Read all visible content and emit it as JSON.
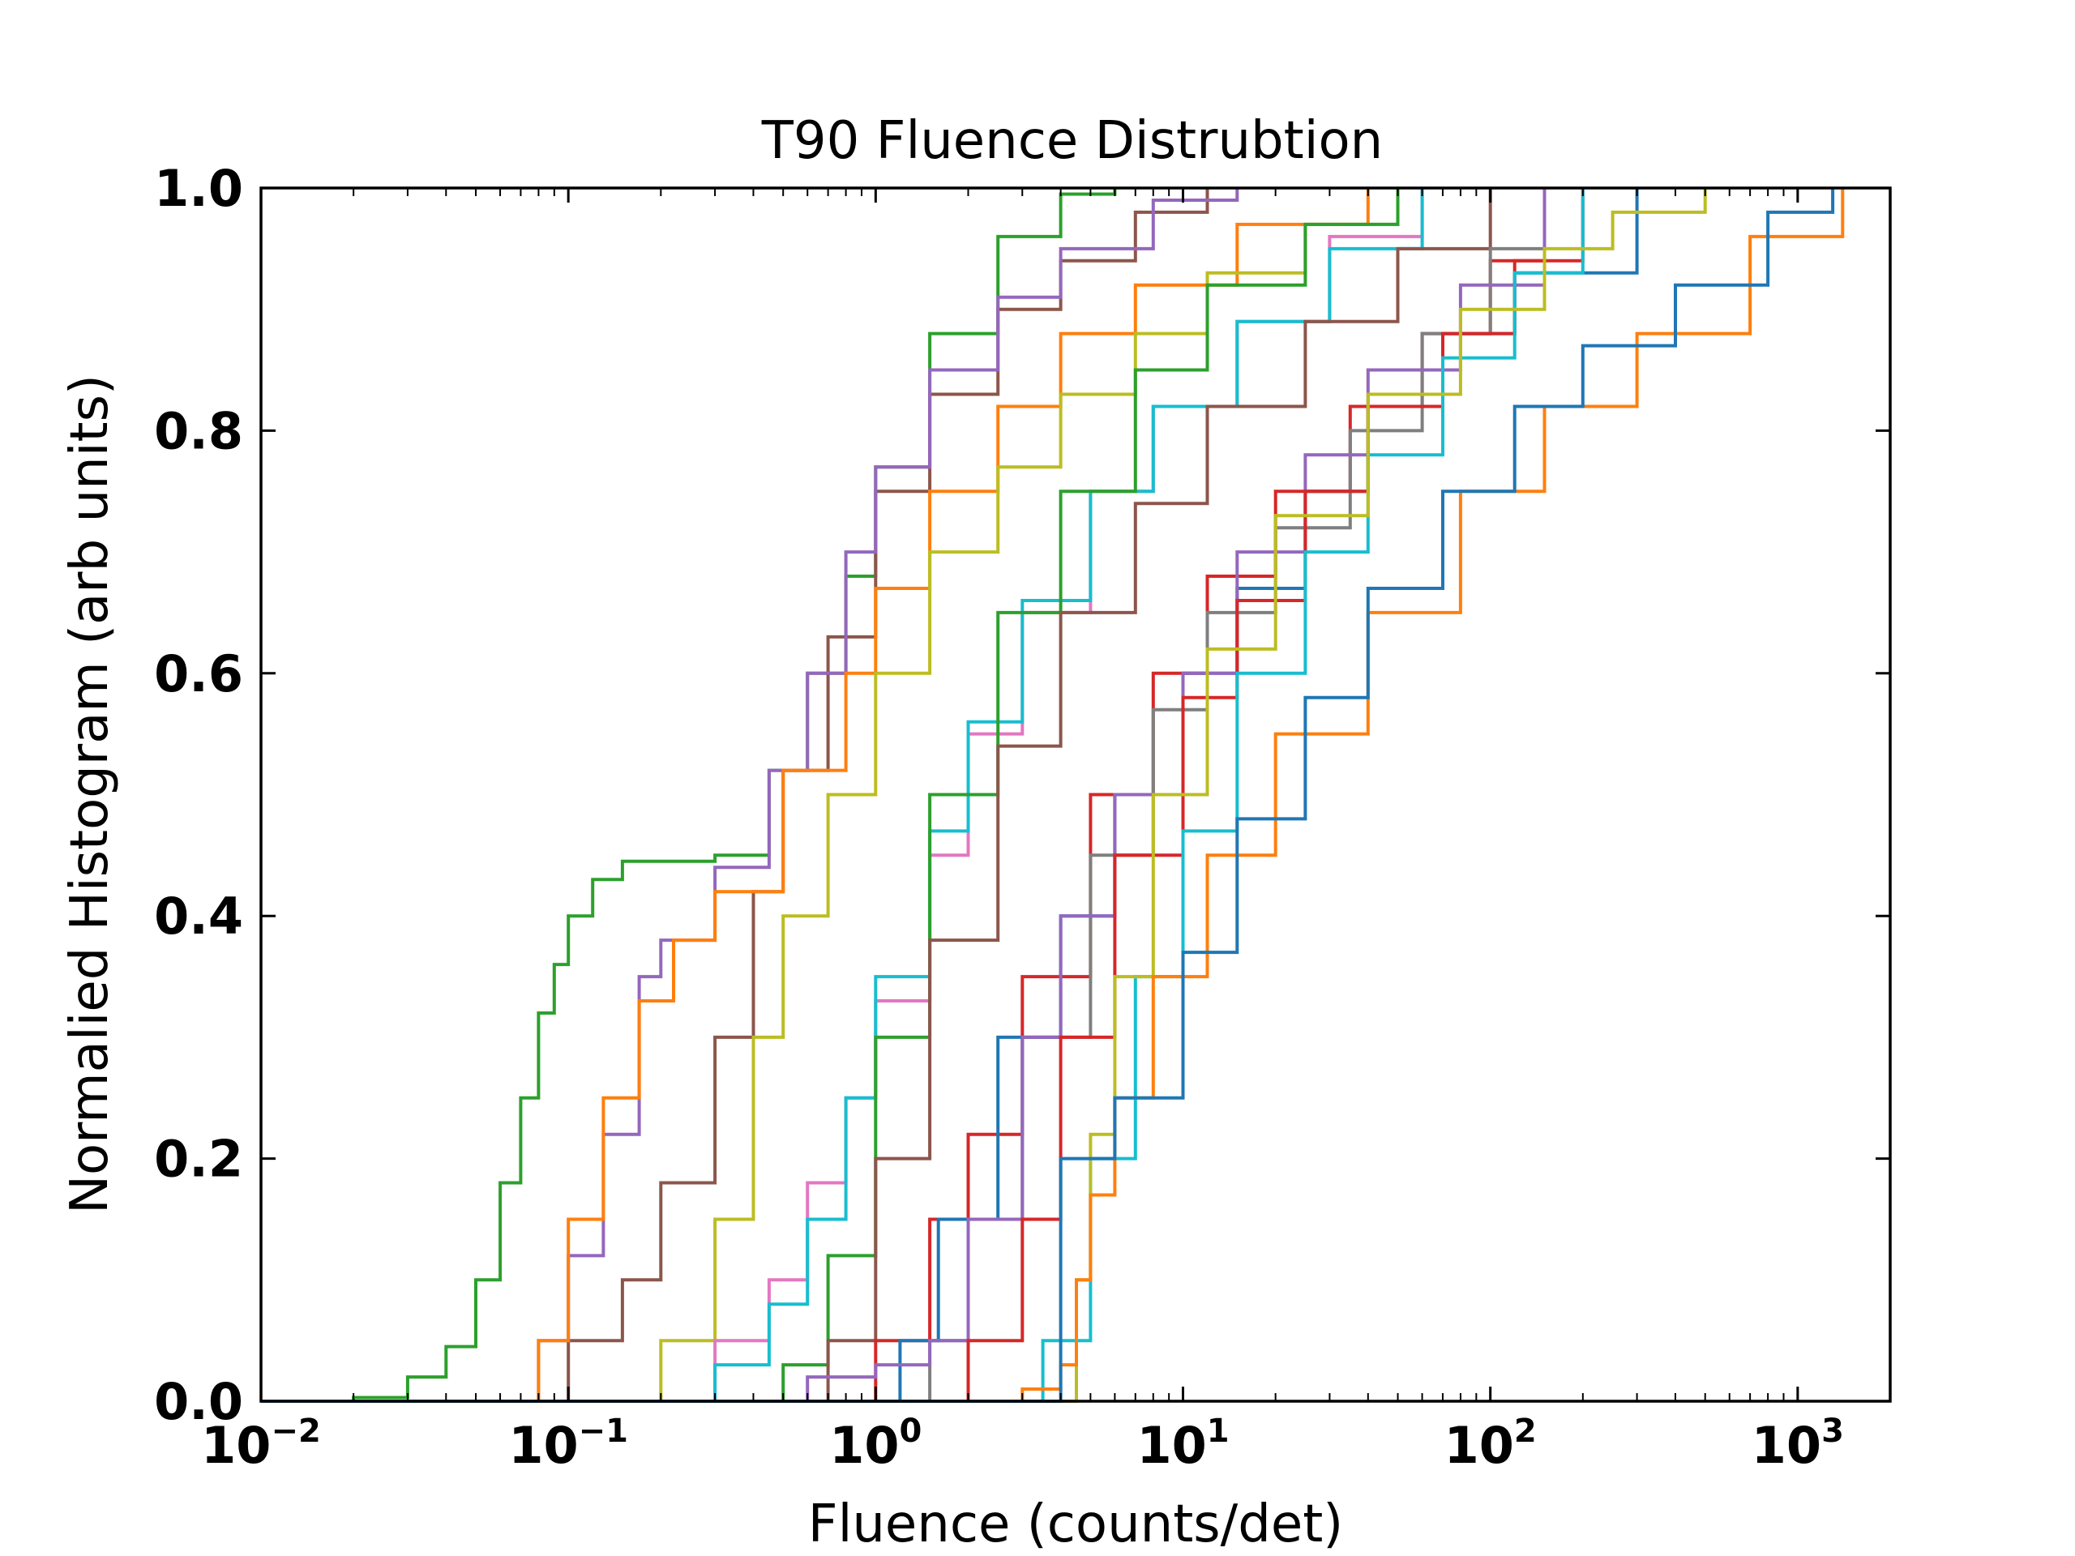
{
  "chart_data": {
    "type": "line",
    "drawstyle": "steps",
    "title": "T90 Fluence Distrubtion",
    "xlabel": "Fluence (counts/det)",
    "ylabel": "Normalied Histogram (arb units)",
    "xscale": "log",
    "xlim": [
      0.01,
      2000
    ],
    "ylim": [
      0,
      1
    ],
    "grid": false,
    "legend": "none",
    "yticks": [
      {
        "value": 0.0,
        "label": "0.0"
      },
      {
        "value": 0.2,
        "label": "0.2"
      },
      {
        "value": 0.4,
        "label": "0.4"
      },
      {
        "value": 0.6,
        "label": "0.6"
      },
      {
        "value": 0.8,
        "label": "0.8"
      },
      {
        "value": 1.0,
        "label": "1.0"
      }
    ],
    "xticks": [
      {
        "value": 0.01,
        "base": "10",
        "exp": "−2"
      },
      {
        "value": 0.1,
        "base": "10",
        "exp": "−1"
      },
      {
        "value": 1,
        "base": "10",
        "exp": "0"
      },
      {
        "value": 10,
        "base": "10",
        "exp": "1"
      },
      {
        "value": 100,
        "base": "10",
        "exp": "2"
      },
      {
        "value": 1000,
        "base": "10",
        "exp": "3"
      }
    ],
    "series": [
      {
        "color": "#2ca02c",
        "x": [
          0.01,
          0.02,
          0.03,
          0.04,
          0.05,
          0.06,
          0.07,
          0.08,
          0.09,
          0.1,
          0.12,
          0.15,
          0.2,
          0.3,
          0.45,
          0.6,
          0.8,
          1.0,
          1.5,
          2.5,
          4.0,
          6.0
        ],
        "y": [
          0,
          0.003,
          0.02,
          0.045,
          0.1,
          0.18,
          0.25,
          0.32,
          0.36,
          0.4,
          0.43,
          0.445,
          0.445,
          0.45,
          0.52,
          0.6,
          0.68,
          0.77,
          0.88,
          0.96,
          0.995,
          1.0
        ]
      },
      {
        "color": "#8c564b",
        "x": [
          0.05,
          0.1,
          0.15,
          0.2,
          0.3,
          0.4,
          0.5,
          0.7,
          1.0,
          1.5,
          2.5,
          4.0,
          7.0,
          12
        ],
        "y": [
          0,
          0.05,
          0.1,
          0.18,
          0.3,
          0.42,
          0.52,
          0.63,
          0.75,
          0.83,
          0.9,
          0.94,
          0.98,
          1.0
        ]
      },
      {
        "color": "#9467bd",
        "x": [
          0.05,
          0.08,
          0.1,
          0.13,
          0.17,
          0.2,
          0.3,
          0.45,
          0.6,
          0.8,
          1.0,
          1.5,
          2.5,
          4.0,
          8.0,
          15
        ],
        "y": [
          0,
          0.05,
          0.12,
          0.22,
          0.35,
          0.38,
          0.44,
          0.52,
          0.6,
          0.7,
          0.77,
          0.85,
          0.91,
          0.95,
          0.99,
          1.0
        ]
      },
      {
        "color": "#ff7f0e",
        "x": [
          0.06,
          0.08,
          0.1,
          0.13,
          0.17,
          0.22,
          0.3,
          0.5,
          0.8,
          1.0,
          1.5,
          2.5,
          4.0,
          7.0,
          15,
          40
        ],
        "y": [
          0,
          0.05,
          0.15,
          0.25,
          0.33,
          0.38,
          0.42,
          0.52,
          0.6,
          0.67,
          0.75,
          0.82,
          0.88,
          0.92,
          0.97,
          1.0
        ]
      },
      {
        "color": "#bcbd22",
        "x": [
          0.15,
          0.2,
          0.3,
          0.4,
          0.5,
          0.7,
          1.0,
          1.5,
          2.5,
          4.0,
          7.0,
          12,
          25,
          50
        ],
        "y": [
          0,
          0.05,
          0.15,
          0.3,
          0.4,
          0.5,
          0.6,
          0.7,
          0.77,
          0.83,
          0.88,
          0.93,
          0.97,
          1.0
        ]
      },
      {
        "color": "#e377c2",
        "x": [
          0.2,
          0.3,
          0.45,
          0.6,
          0.8,
          1.0,
          1.5,
          2.0,
          3.0,
          5.0,
          8.0,
          15,
          30,
          60
        ],
        "y": [
          0,
          0.05,
          0.1,
          0.18,
          0.25,
          0.33,
          0.45,
          0.55,
          0.65,
          0.75,
          0.82,
          0.89,
          0.96,
          1.0
        ]
      },
      {
        "color": "#17becf",
        "x": [
          0.2,
          0.3,
          0.45,
          0.6,
          0.8,
          1.0,
          1.5,
          2.0,
          3.0,
          5.0,
          8.0,
          15,
          30,
          60
        ],
        "y": [
          0,
          0.03,
          0.08,
          0.15,
          0.25,
          0.35,
          0.47,
          0.56,
          0.66,
          0.75,
          0.82,
          0.89,
          0.95,
          1.0
        ]
      },
      {
        "color": "#2ca02c",
        "x": [
          0.3,
          0.5,
          0.7,
          1.0,
          1.5,
          2.5,
          4.0,
          7.0,
          12,
          25,
          50
        ],
        "y": [
          0,
          0.03,
          0.12,
          0.3,
          0.5,
          0.65,
          0.75,
          0.85,
          0.92,
          0.97,
          1.0
        ]
      },
      {
        "color": "#8c564b",
        "x": [
          0.4,
          0.7,
          1.0,
          1.5,
          2.5,
          4.0,
          7.0,
          12,
          25,
          50,
          100
        ],
        "y": [
          0,
          0.05,
          0.2,
          0.38,
          0.54,
          0.65,
          0.74,
          0.82,
          0.89,
          0.95,
          1.0
        ]
      },
      {
        "color": "#d62728",
        "x": [
          0.6,
          1.0,
          1.5,
          2.0,
          3.0,
          5.0,
          8.0,
          12,
          20,
          35,
          60,
          100,
          150
        ],
        "y": [
          0,
          0.05,
          0.15,
          0.22,
          0.35,
          0.5,
          0.6,
          0.68,
          0.75,
          0.82,
          0.88,
          0.94,
          1.0
        ]
      },
      {
        "color": "#7f7f7f",
        "x": [
          1.0,
          1.5,
          2.0,
          3.0,
          5.0,
          8.0,
          12,
          20,
          35,
          60,
          100,
          150
        ],
        "y": [
          0,
          0.05,
          0.15,
          0.3,
          0.45,
          0.57,
          0.65,
          0.72,
          0.8,
          0.88,
          0.95,
          1.0
        ]
      },
      {
        "color": "#1f77b4",
        "x": [
          0.8,
          1.2,
          1.6,
          2.5,
          4.0,
          6.0,
          10,
          15,
          25,
          40,
          70,
          120,
          300
        ],
        "y": [
          0,
          0.05,
          0.15,
          0.3,
          0.4,
          0.5,
          0.6,
          0.67,
          0.75,
          0.82,
          0.88,
          0.93,
          1.0
        ]
      },
      {
        "color": "#9467bd",
        "x": [
          0.3,
          0.6,
          1.0,
          1.5,
          2.0,
          3.0,
          4.0,
          6.0,
          10,
          15,
          25,
          40,
          80,
          150
        ],
        "y": [
          0,
          0.02,
          0.03,
          0.05,
          0.15,
          0.3,
          0.4,
          0.5,
          0.6,
          0.7,
          0.78,
          0.85,
          0.92,
          1.0
        ]
      },
      {
        "color": "#d62728",
        "x": [
          1.2,
          2.0,
          3.0,
          4.0,
          6.0,
          10,
          15,
          25,
          40,
          70,
          120,
          200
        ],
        "y": [
          0,
          0.05,
          0.15,
          0.3,
          0.45,
          0.58,
          0.66,
          0.75,
          0.82,
          0.88,
          0.94,
          1.0
        ]
      },
      {
        "color": "#17becf",
        "x": [
          2.5,
          3.5,
          5.0,
          7.0,
          10,
          15,
          25,
          40,
          70,
          120,
          200
        ],
        "y": [
          0,
          0.05,
          0.2,
          0.35,
          0.47,
          0.6,
          0.7,
          0.78,
          0.86,
          0.93,
          1.0
        ]
      },
      {
        "color": "#bcbd22",
        "x": [
          4.0,
          4.5,
          5.0,
          6.0,
          8.0,
          12,
          20,
          40,
          80,
          150,
          250,
          500
        ],
        "y": [
          0,
          0.1,
          0.22,
          0.35,
          0.5,
          0.62,
          0.73,
          0.83,
          0.9,
          0.95,
          0.98,
          1.0
        ]
      },
      {
        "color": "#ff7f0e",
        "x": [
          0.4,
          3.0,
          4.0,
          4.5,
          5.0,
          6.0,
          8.0,
          12,
          20,
          40,
          80,
          150,
          300,
          700,
          1400
        ],
        "y": [
          0,
          0.01,
          0.03,
          0.1,
          0.17,
          0.25,
          0.35,
          0.45,
          0.55,
          0.65,
          0.75,
          0.82,
          0.88,
          0.96,
          1.0
        ]
      },
      {
        "color": "#1f77b4",
        "x": [
          3.0,
          4.0,
          6.0,
          10,
          15,
          25,
          40,
          70,
          120,
          200,
          400,
          800,
          1300
        ],
        "y": [
          0,
          0.2,
          0.25,
          0.37,
          0.48,
          0.58,
          0.67,
          0.75,
          0.82,
          0.87,
          0.92,
          0.98,
          1.0
        ]
      }
    ]
  }
}
